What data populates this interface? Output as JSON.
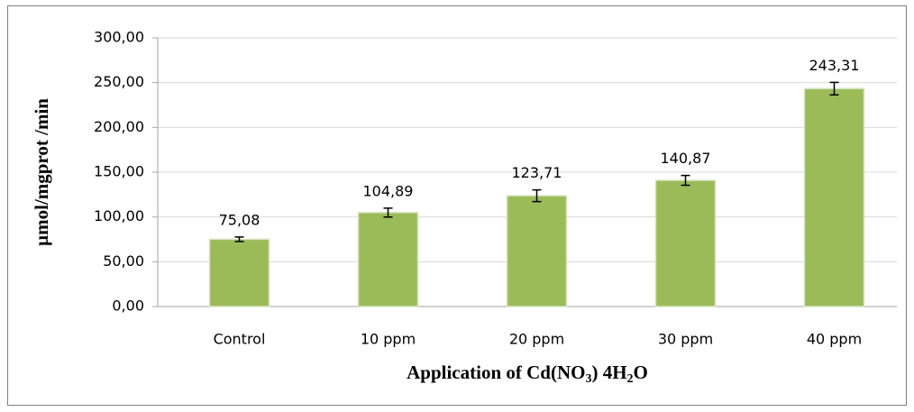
{
  "chart_data": {
    "type": "bar",
    "y_label": "µmol/mgprot /min",
    "x_label_parts": [
      "Application of Cd(NO",
      "3",
      ") 4H",
      "2",
      "O"
    ],
    "categories": [
      "Control",
      "10 ppm",
      "20 ppm",
      "30 ppm",
      "40 ppm"
    ],
    "values": [
      75.08,
      104.89,
      123.71,
      140.87,
      243.31
    ],
    "value_labels": [
      "75,08",
      "104,89",
      "123,71",
      "140,87",
      "243,31"
    ],
    "errors": [
      2.5,
      5,
      6.5,
      5.5,
      7
    ],
    "color": "#9bbb59",
    "ylim": [
      0,
      300
    ],
    "yticks": [
      {
        "value": 0,
        "label": "0,00"
      },
      {
        "value": 50,
        "label": "50,00"
      },
      {
        "value": 100,
        "label": "100,00"
      },
      {
        "value": 150,
        "label": "150,00"
      },
      {
        "value": 200,
        "label": "200,00"
      },
      {
        "value": 250,
        "label": "250,00"
      },
      {
        "value": 300,
        "label": "300,00"
      }
    ],
    "grid": true
  }
}
